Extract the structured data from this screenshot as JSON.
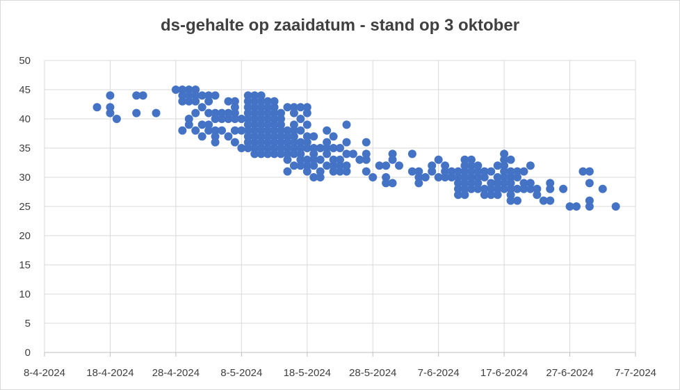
{
  "chart_data": {
    "type": "scatter",
    "title": "ds-gehalte op zaaidatum - stand op 3 oktober",
    "xlabel": "",
    "ylabel": "",
    "x_axis_type": "date",
    "xlim": [
      "2024-04-08",
      "2024-07-07"
    ],
    "ylim": [
      0,
      50
    ],
    "x_ticks": [
      "2024-04-08",
      "2024-04-18",
      "2024-04-28",
      "2024-05-08",
      "2024-05-18",
      "2024-05-28",
      "2024-06-07",
      "2024-06-17",
      "2024-06-27",
      "2024-07-07"
    ],
    "x_tick_labels": [
      "8-4-2024",
      "18-4-2024",
      "28-4-2024",
      "8-5-2024",
      "18-5-2024",
      "28-5-2024",
      "7-6-2024",
      "17-6-2024",
      "27-6-2024",
      "7-7-2024"
    ],
    "y_ticks": [
      0,
      5,
      10,
      15,
      20,
      25,
      30,
      35,
      40,
      45,
      50
    ],
    "y_tick_labels": [
      "0",
      "5",
      "10",
      "15",
      "20",
      "25",
      "30",
      "35",
      "40",
      "45",
      "50"
    ],
    "grid": true,
    "legend": "none",
    "marker_color": "#4472c4",
    "series": [
      {
        "points": [
          [
            "2024-04-16",
            42
          ],
          [
            "2024-04-18",
            44
          ],
          [
            "2024-04-18",
            42
          ],
          [
            "2024-04-18",
            41
          ],
          [
            "2024-04-19",
            40
          ],
          [
            "2024-04-22",
            44
          ],
          [
            "2024-04-22",
            41
          ],
          [
            "2024-04-23",
            44
          ],
          [
            "2024-04-25",
            41
          ],
          [
            "2024-04-28",
            45
          ],
          [
            "2024-04-29",
            45
          ],
          [
            "2024-04-29",
            38
          ],
          [
            "2024-04-29",
            43
          ],
          [
            "2024-04-29",
            44
          ],
          [
            "2024-04-30",
            45
          ],
          [
            "2024-04-30",
            44
          ],
          [
            "2024-04-30",
            43
          ],
          [
            "2024-04-30",
            40
          ],
          [
            "2024-04-30",
            39
          ],
          [
            "2024-05-01",
            45
          ],
          [
            "2024-05-01",
            44
          ],
          [
            "2024-05-01",
            43
          ],
          [
            "2024-05-01",
            41
          ],
          [
            "2024-05-01",
            38
          ],
          [
            "2024-05-02",
            44
          ],
          [
            "2024-05-02",
            42
          ],
          [
            "2024-05-02",
            39
          ],
          [
            "2024-05-02",
            37
          ],
          [
            "2024-05-03",
            44
          ],
          [
            "2024-05-03",
            43
          ],
          [
            "2024-05-03",
            41
          ],
          [
            "2024-05-03",
            39
          ],
          [
            "2024-05-03",
            38
          ],
          [
            "2024-05-04",
            44
          ],
          [
            "2024-05-04",
            41
          ],
          [
            "2024-05-04",
            40
          ],
          [
            "2024-05-04",
            38
          ],
          [
            "2024-05-04",
            37
          ],
          [
            "2024-05-04",
            36
          ],
          [
            "2024-05-05",
            41
          ],
          [
            "2024-05-05",
            40
          ],
          [
            "2024-05-05",
            38
          ],
          [
            "2024-05-06",
            43
          ],
          [
            "2024-05-06",
            41
          ],
          [
            "2024-05-06",
            40
          ],
          [
            "2024-05-06",
            37
          ],
          [
            "2024-05-07",
            43
          ],
          [
            "2024-05-07",
            42
          ],
          [
            "2024-05-07",
            41
          ],
          [
            "2024-05-07",
            40
          ],
          [
            "2024-05-07",
            38
          ],
          [
            "2024-05-07",
            36
          ],
          [
            "2024-05-08",
            40
          ],
          [
            "2024-05-08",
            38
          ],
          [
            "2024-05-08",
            35
          ],
          [
            "2024-05-09",
            44
          ],
          [
            "2024-05-09",
            43
          ],
          [
            "2024-05-09",
            42
          ],
          [
            "2024-05-09",
            41
          ],
          [
            "2024-05-09",
            40
          ],
          [
            "2024-05-09",
            39
          ],
          [
            "2024-05-09",
            38
          ],
          [
            "2024-05-09",
            37
          ],
          [
            "2024-05-09",
            36
          ],
          [
            "2024-05-09",
            35
          ],
          [
            "2024-05-10",
            44
          ],
          [
            "2024-05-10",
            43
          ],
          [
            "2024-05-10",
            42
          ],
          [
            "2024-05-10",
            41
          ],
          [
            "2024-05-10",
            40
          ],
          [
            "2024-05-10",
            39
          ],
          [
            "2024-05-10",
            38
          ],
          [
            "2024-05-10",
            37
          ],
          [
            "2024-05-10",
            36
          ],
          [
            "2024-05-10",
            35
          ],
          [
            "2024-05-10",
            34
          ],
          [
            "2024-05-11",
            44
          ],
          [
            "2024-05-11",
            43
          ],
          [
            "2024-05-11",
            42
          ],
          [
            "2024-05-11",
            41
          ],
          [
            "2024-05-11",
            40
          ],
          [
            "2024-05-11",
            39
          ],
          [
            "2024-05-11",
            38
          ],
          [
            "2024-05-11",
            37
          ],
          [
            "2024-05-11",
            36
          ],
          [
            "2024-05-11",
            35
          ],
          [
            "2024-05-11",
            34
          ],
          [
            "2024-05-12",
            43
          ],
          [
            "2024-05-12",
            42
          ],
          [
            "2024-05-12",
            41
          ],
          [
            "2024-05-12",
            40
          ],
          [
            "2024-05-12",
            39
          ],
          [
            "2024-05-12",
            38
          ],
          [
            "2024-05-12",
            37
          ],
          [
            "2024-05-12",
            36
          ],
          [
            "2024-05-12",
            35
          ],
          [
            "2024-05-12",
            34
          ],
          [
            "2024-05-13",
            43
          ],
          [
            "2024-05-13",
            42
          ],
          [
            "2024-05-13",
            41
          ],
          [
            "2024-05-13",
            40
          ],
          [
            "2024-05-13",
            39
          ],
          [
            "2024-05-13",
            38
          ],
          [
            "2024-05-13",
            37
          ],
          [
            "2024-05-13",
            36
          ],
          [
            "2024-05-13",
            35
          ],
          [
            "2024-05-13",
            34
          ],
          [
            "2024-05-14",
            41
          ],
          [
            "2024-05-14",
            40
          ],
          [
            "2024-05-14",
            39
          ],
          [
            "2024-05-14",
            38
          ],
          [
            "2024-05-14",
            37
          ],
          [
            "2024-05-14",
            36
          ],
          [
            "2024-05-14",
            35
          ],
          [
            "2024-05-14",
            34
          ],
          [
            "2024-05-15",
            42
          ],
          [
            "2024-05-15",
            38
          ],
          [
            "2024-05-15",
            37
          ],
          [
            "2024-05-15",
            36
          ],
          [
            "2024-05-15",
            35
          ],
          [
            "2024-05-15",
            34
          ],
          [
            "2024-05-15",
            33
          ],
          [
            "2024-05-15",
            31
          ],
          [
            "2024-05-16",
            42
          ],
          [
            "2024-05-16",
            41
          ],
          [
            "2024-05-16",
            39
          ],
          [
            "2024-05-16",
            38
          ],
          [
            "2024-05-16",
            37
          ],
          [
            "2024-05-16",
            36
          ],
          [
            "2024-05-16",
            35
          ],
          [
            "2024-05-16",
            34
          ],
          [
            "2024-05-16",
            32
          ],
          [
            "2024-05-17",
            42
          ],
          [
            "2024-05-17",
            40
          ],
          [
            "2024-05-17",
            38
          ],
          [
            "2024-05-17",
            36
          ],
          [
            "2024-05-17",
            35
          ],
          [
            "2024-05-17",
            34
          ],
          [
            "2024-05-17",
            33
          ],
          [
            "2024-05-17",
            32
          ],
          [
            "2024-05-18",
            42
          ],
          [
            "2024-05-18",
            41
          ],
          [
            "2024-05-18",
            39
          ],
          [
            "2024-05-18",
            37
          ],
          [
            "2024-05-18",
            36
          ],
          [
            "2024-05-18",
            35
          ],
          [
            "2024-05-18",
            33
          ],
          [
            "2024-05-18",
            32
          ],
          [
            "2024-05-18",
            31
          ],
          [
            "2024-05-19",
            37
          ],
          [
            "2024-05-19",
            35
          ],
          [
            "2024-05-19",
            34
          ],
          [
            "2024-05-19",
            33
          ],
          [
            "2024-05-19",
            32
          ],
          [
            "2024-05-19",
            30
          ],
          [
            "2024-05-20",
            35
          ],
          [
            "2024-05-20",
            33
          ],
          [
            "2024-05-20",
            31
          ],
          [
            "2024-05-20",
            30
          ],
          [
            "2024-05-21",
            38
          ],
          [
            "2024-05-21",
            36
          ],
          [
            "2024-05-21",
            35
          ],
          [
            "2024-05-21",
            34
          ],
          [
            "2024-05-21",
            32
          ],
          [
            "2024-05-22",
            37
          ],
          [
            "2024-05-22",
            35
          ],
          [
            "2024-05-22",
            33
          ],
          [
            "2024-05-22",
            32
          ],
          [
            "2024-05-22",
            31
          ],
          [
            "2024-05-23",
            35
          ],
          [
            "2024-05-23",
            33
          ],
          [
            "2024-05-23",
            32
          ],
          [
            "2024-05-23",
            31
          ],
          [
            "2024-05-24",
            39
          ],
          [
            "2024-05-24",
            36
          ],
          [
            "2024-05-24",
            34
          ],
          [
            "2024-05-24",
            32
          ],
          [
            "2024-05-24",
            31
          ],
          [
            "2024-05-25",
            34
          ],
          [
            "2024-05-26",
            33
          ],
          [
            "2024-05-27",
            36
          ],
          [
            "2024-05-27",
            34
          ],
          [
            "2024-05-27",
            33
          ],
          [
            "2024-05-27",
            31
          ],
          [
            "2024-05-28",
            30
          ],
          [
            "2024-05-29",
            32
          ],
          [
            "2024-05-30",
            32
          ],
          [
            "2024-05-30",
            30
          ],
          [
            "2024-05-30",
            29
          ],
          [
            "2024-05-31",
            34
          ],
          [
            "2024-05-31",
            33
          ],
          [
            "2024-05-31",
            29
          ],
          [
            "2024-06-01",
            32
          ],
          [
            "2024-06-03",
            34
          ],
          [
            "2024-06-03",
            31
          ],
          [
            "2024-06-04",
            31
          ],
          [
            "2024-06-04",
            30
          ],
          [
            "2024-06-04",
            29
          ],
          [
            "2024-06-05",
            30
          ],
          [
            "2024-06-06",
            32
          ],
          [
            "2024-06-06",
            31
          ],
          [
            "2024-06-07",
            33
          ],
          [
            "2024-06-07",
            30
          ],
          [
            "2024-06-08",
            32
          ],
          [
            "2024-06-08",
            31
          ],
          [
            "2024-06-08",
            30
          ],
          [
            "2024-06-09",
            31
          ],
          [
            "2024-06-09",
            30
          ],
          [
            "2024-06-10",
            31
          ],
          [
            "2024-06-10",
            30
          ],
          [
            "2024-06-10",
            29
          ],
          [
            "2024-06-10",
            28
          ],
          [
            "2024-06-10",
            27
          ],
          [
            "2024-06-11",
            33
          ],
          [
            "2024-06-11",
            32
          ],
          [
            "2024-06-11",
            31
          ],
          [
            "2024-06-11",
            30
          ],
          [
            "2024-06-11",
            29
          ],
          [
            "2024-06-11",
            28
          ],
          [
            "2024-06-11",
            27
          ],
          [
            "2024-06-12",
            33
          ],
          [
            "2024-06-12",
            32
          ],
          [
            "2024-06-12",
            31
          ],
          [
            "2024-06-12",
            30
          ],
          [
            "2024-06-12",
            29
          ],
          [
            "2024-06-12",
            28
          ],
          [
            "2024-06-13",
            32
          ],
          [
            "2024-06-13",
            31
          ],
          [
            "2024-06-13",
            30
          ],
          [
            "2024-06-13",
            29
          ],
          [
            "2024-06-13",
            28
          ],
          [
            "2024-06-14",
            31
          ],
          [
            "2024-06-14",
            30
          ],
          [
            "2024-06-14",
            28
          ],
          [
            "2024-06-14",
            27
          ],
          [
            "2024-06-15",
            31
          ],
          [
            "2024-06-15",
            29
          ],
          [
            "2024-06-15",
            28
          ],
          [
            "2024-06-15",
            27
          ],
          [
            "2024-06-16",
            32
          ],
          [
            "2024-06-16",
            30
          ],
          [
            "2024-06-16",
            29
          ],
          [
            "2024-06-16",
            28
          ],
          [
            "2024-06-16",
            27
          ],
          [
            "2024-06-17",
            34
          ],
          [
            "2024-06-17",
            33
          ],
          [
            "2024-06-17",
            32
          ],
          [
            "2024-06-17",
            31
          ],
          [
            "2024-06-17",
            30
          ],
          [
            "2024-06-17",
            29
          ],
          [
            "2024-06-17",
            28
          ],
          [
            "2024-06-18",
            33
          ],
          [
            "2024-06-18",
            31
          ],
          [
            "2024-06-18",
            30
          ],
          [
            "2024-06-18",
            29
          ],
          [
            "2024-06-18",
            28
          ],
          [
            "2024-06-18",
            27
          ],
          [
            "2024-06-18",
            26
          ],
          [
            "2024-06-19",
            31
          ],
          [
            "2024-06-19",
            30
          ],
          [
            "2024-06-19",
            28
          ],
          [
            "2024-06-19",
            26
          ],
          [
            "2024-06-20",
            31
          ],
          [
            "2024-06-20",
            29
          ],
          [
            "2024-06-20",
            28
          ],
          [
            "2024-06-21",
            32
          ],
          [
            "2024-06-21",
            29
          ],
          [
            "2024-06-21",
            28
          ],
          [
            "2024-06-22",
            28
          ],
          [
            "2024-06-22",
            27
          ],
          [
            "2024-06-23",
            26
          ],
          [
            "2024-06-24",
            29
          ],
          [
            "2024-06-24",
            28
          ],
          [
            "2024-06-24",
            26
          ],
          [
            "2024-06-26",
            28
          ],
          [
            "2024-06-27",
            25
          ],
          [
            "2024-06-28",
            25
          ],
          [
            "2024-06-29",
            31
          ],
          [
            "2024-06-30",
            31
          ],
          [
            "2024-06-30",
            29
          ],
          [
            "2024-06-30",
            26
          ],
          [
            "2024-06-30",
            25
          ],
          [
            "2024-07-02",
            28
          ],
          [
            "2024-07-04",
            25
          ]
        ]
      }
    ]
  }
}
